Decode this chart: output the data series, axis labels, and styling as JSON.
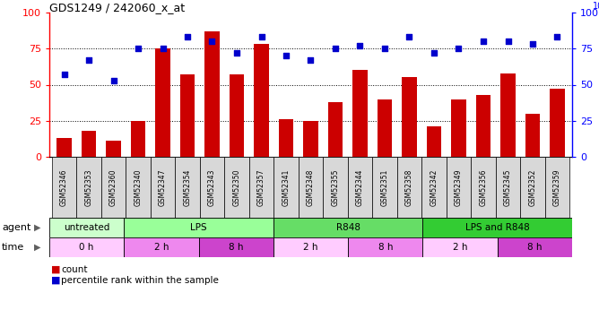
{
  "title": "GDS1249 / 242060_x_at",
  "samples": [
    "GSM52346",
    "GSM52353",
    "GSM52360",
    "GSM52340",
    "GSM52347",
    "GSM52354",
    "GSM52343",
    "GSM52350",
    "GSM52357",
    "GSM52341",
    "GSM52348",
    "GSM52355",
    "GSM52344",
    "GSM52351",
    "GSM52358",
    "GSM52342",
    "GSM52349",
    "GSM52356",
    "GSM52345",
    "GSM52352",
    "GSM52359"
  ],
  "counts": [
    13,
    18,
    11,
    25,
    75,
    57,
    87,
    57,
    78,
    26,
    25,
    38,
    60,
    40,
    55,
    21,
    40,
    43,
    58,
    30,
    47
  ],
  "percentiles": [
    57,
    67,
    53,
    75,
    75,
    83,
    80,
    72,
    83,
    70,
    67,
    75,
    77,
    75,
    83,
    72,
    75,
    80,
    80,
    78,
    83
  ],
  "bar_color": "#cc0000",
  "dot_color": "#0000cc",
  "agent_groups": [
    {
      "label": "untreated",
      "start": 0,
      "end": 3,
      "color": "#ccffcc"
    },
    {
      "label": "LPS",
      "start": 3,
      "end": 9,
      "color": "#99ff99"
    },
    {
      "label": "R848",
      "start": 9,
      "end": 15,
      "color": "#66dd66"
    },
    {
      "label": "LPS and R848",
      "start": 15,
      "end": 21,
      "color": "#33cc33"
    }
  ],
  "time_groups": [
    {
      "label": "0 h",
      "start": 0,
      "end": 3,
      "color": "#ffccff"
    },
    {
      "label": "2 h",
      "start": 3,
      "end": 6,
      "color": "#ee88ee"
    },
    {
      "label": "8 h",
      "start": 6,
      "end": 9,
      "color": "#cc44cc"
    },
    {
      "label": "2 h",
      "start": 9,
      "end": 12,
      "color": "#ffccff"
    },
    {
      "label": "8 h",
      "start": 12,
      "end": 15,
      "color": "#ee88ee"
    },
    {
      "label": "2 h",
      "start": 15,
      "end": 18,
      "color": "#ffccff"
    },
    {
      "label": "8 h",
      "start": 18,
      "end": 21,
      "color": "#cc44cc"
    }
  ],
  "ylim": [
    0,
    100
  ],
  "grid_lines": [
    25,
    50,
    75
  ],
  "plot_bg": "#ffffff",
  "tick_bg": "#e0e0e0"
}
